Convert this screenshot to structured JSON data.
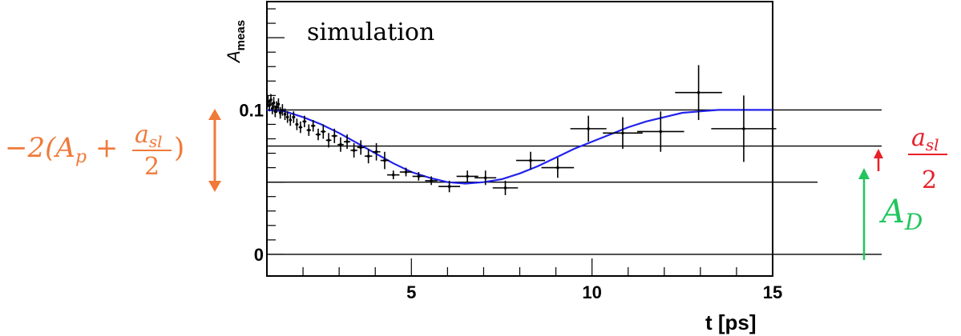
{
  "chart_data": {
    "type": "scatter",
    "title": "",
    "annotation": "simulation",
    "xlabel": "t [ps]",
    "ylabel_main": "A",
    "ylabel_sub": "meas",
    "xlim": [
      1,
      15
    ],
    "ylim": [
      -0.015,
      0.175
    ],
    "x_ticks": [
      5,
      10,
      15
    ],
    "x_tick_labels": [
      "5",
      "10",
      "15"
    ],
    "y_ticks": [
      0,
      0.1
    ],
    "y_tick_labels": [
      "0",
      "0.1"
    ],
    "grid": false,
    "reference_lines": [
      0.1,
      0.075,
      0.05,
      0
    ],
    "series": [
      {
        "type": "points",
        "color": "#000000",
        "x": [
          1.03,
          1.07,
          1.11,
          1.15,
          1.19,
          1.23,
          1.27,
          1.32,
          1.37,
          1.43,
          1.5,
          1.57,
          1.65,
          1.74,
          1.83,
          1.93,
          2.04,
          2.16,
          2.28,
          2.42,
          2.56,
          2.71,
          2.87,
          3.04,
          3.22,
          3.41,
          3.6,
          3.81,
          4.03,
          4.26,
          4.5,
          4.85,
          5.2,
          5.55,
          6.05,
          6.55,
          7.05,
          7.6,
          8.3,
          9.05,
          9.9,
          10.85,
          11.9,
          12.95,
          14.2
        ],
        "y": [
          0.106,
          0.103,
          0.107,
          0.101,
          0.105,
          0.099,
          0.102,
          0.104,
          0.098,
          0.1,
          0.097,
          0.095,
          0.093,
          0.095,
          0.09,
          0.088,
          0.092,
          0.086,
          0.089,
          0.083,
          0.085,
          0.079,
          0.082,
          0.076,
          0.078,
          0.072,
          0.074,
          0.068,
          0.071,
          0.065,
          0.055,
          0.057,
          0.054,
          0.051,
          0.047,
          0.054,
          0.053,
          0.046,
          0.065,
          0.06,
          0.087,
          0.084,
          0.085,
          0.112,
          0.087
        ],
        "xerr": [
          0.02,
          0.02,
          0.02,
          0.02,
          0.02,
          0.02,
          0.02,
          0.025,
          0.025,
          0.03,
          0.035,
          0.035,
          0.04,
          0.045,
          0.045,
          0.05,
          0.055,
          0.06,
          0.06,
          0.07,
          0.07,
          0.075,
          0.08,
          0.085,
          0.09,
          0.095,
          0.1,
          0.105,
          0.11,
          0.115,
          0.17,
          0.17,
          0.17,
          0.17,
          0.3,
          0.3,
          0.3,
          0.35,
          0.4,
          0.45,
          0.5,
          0.55,
          0.65,
          0.65,
          0.9
        ],
        "yerr": [
          0.004,
          0.004,
          0.004,
          0.004,
          0.004,
          0.004,
          0.004,
          0.004,
          0.004,
          0.004,
          0.004,
          0.004,
          0.004,
          0.004,
          0.004,
          0.004,
          0.004,
          0.004,
          0.004,
          0.004,
          0.005,
          0.005,
          0.005,
          0.005,
          0.005,
          0.005,
          0.005,
          0.005,
          0.006,
          0.006,
          0.003,
          0.003,
          0.003,
          0.003,
          0.004,
          0.004,
          0.005,
          0.005,
          0.006,
          0.007,
          0.009,
          0.011,
          0.014,
          0.019,
          0.023
        ]
      },
      {
        "type": "line",
        "color": "#2222ee",
        "x": [
          1,
          1.5,
          2,
          2.5,
          3,
          3.5,
          4,
          4.5,
          5,
          5.5,
          6,
          6.5,
          7,
          7.5,
          8,
          8.5,
          9,
          9.5,
          10,
          10.5,
          11,
          11.5,
          12,
          12.5,
          13,
          13.5,
          14,
          14.5,
          15
        ],
        "y": [
          0.1,
          0.099,
          0.095,
          0.09,
          0.084,
          0.077,
          0.07,
          0.063,
          0.057,
          0.053,
          0.05,
          0.049,
          0.05,
          0.052,
          0.056,
          0.061,
          0.067,
          0.073,
          0.078,
          0.083,
          0.088,
          0.092,
          0.095,
          0.098,
          0.099,
          0.1,
          0.1,
          0.1,
          0.1
        ]
      }
    ]
  },
  "annotations": {
    "left_expression": {
      "prefix": "−2(A",
      "p_sub": "p",
      "plus": " + ",
      "frac_num": "a",
      "frac_num_sub": "sl",
      "frac_den": "2",
      "close": ")",
      "color": "#f07a3a"
    },
    "right_fraction": {
      "num": "a",
      "num_sub": "sl",
      "den": "2",
      "color": "#e8202a"
    },
    "right_label": {
      "text": "A",
      "sub": "D",
      "color": "#22c55e"
    }
  }
}
